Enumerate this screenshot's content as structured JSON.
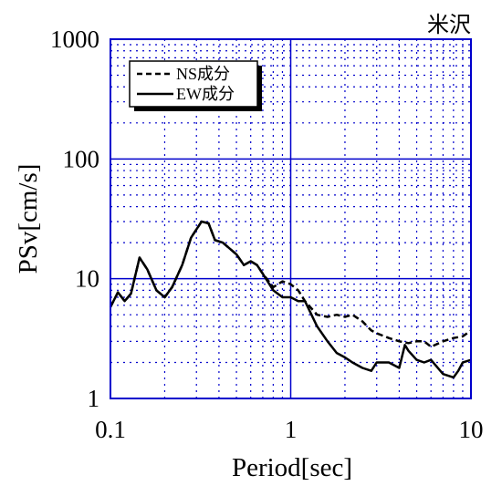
{
  "chart_data": {
    "type": "line",
    "title": "米沢",
    "xlabel": "Period[sec]",
    "ylabel": "PSv[cm/s]",
    "xscale": "log",
    "yscale": "log",
    "xlim": [
      0.1,
      10
    ],
    "ylim": [
      1,
      1000
    ],
    "grid": true,
    "legend_position": "top-left",
    "x_ticks": [
      {
        "value": 0.1,
        "label": "0.1"
      },
      {
        "value": 1,
        "label": "1"
      },
      {
        "value": 10,
        "label": "10"
      }
    ],
    "y_ticks": [
      {
        "value": 1,
        "label": "1"
      },
      {
        "value": 10,
        "label": "10"
      },
      {
        "value": 100,
        "label": "100"
      },
      {
        "value": 1000,
        "label": "1000"
      }
    ],
    "colors": {
      "grid": "#0000cc",
      "axes": "#0000cc",
      "series": "#000000"
    },
    "series": [
      {
        "name": "NS成分",
        "style": "dashed",
        "x": [
          0.1,
          0.11,
          0.12,
          0.13,
          0.145,
          0.16,
          0.18,
          0.2,
          0.22,
          0.25,
          0.28,
          0.32,
          0.35,
          0.38,
          0.42,
          0.5,
          0.55,
          0.6,
          0.65,
          0.7,
          0.8,
          0.9,
          1.0,
          1.1,
          1.2,
          1.4,
          1.6,
          1.8,
          2.0,
          2.2,
          2.5,
          2.8,
          3.0,
          3.5,
          4.0,
          4.5,
          5.0,
          5.5,
          6.0,
          7.0,
          8.0,
          9.0,
          10.0
        ],
        "values": [
          5.8,
          7.7,
          6.5,
          7.5,
          15.0,
          12.0,
          8.0,
          7.0,
          8.5,
          13.0,
          22.0,
          30.0,
          29.0,
          21.0,
          20.0,
          16.0,
          13.0,
          14.0,
          13.0,
          11.0,
          8.5,
          9.5,
          9.0,
          8.0,
          6.5,
          5.0,
          4.8,
          5.0,
          4.8,
          5.0,
          4.4,
          3.7,
          3.5,
          3.2,
          3.0,
          2.9,
          3.0,
          3.0,
          2.7,
          3.0,
          3.2,
          3.3,
          3.7
        ]
      },
      {
        "name": "EW成分",
        "style": "solid",
        "x": [
          0.1,
          0.11,
          0.12,
          0.13,
          0.145,
          0.16,
          0.18,
          0.2,
          0.22,
          0.25,
          0.28,
          0.32,
          0.35,
          0.38,
          0.42,
          0.5,
          0.55,
          0.6,
          0.65,
          0.7,
          0.8,
          0.9,
          1.0,
          1.1,
          1.2,
          1.4,
          1.6,
          1.8,
          2.0,
          2.2,
          2.5,
          2.8,
          3.0,
          3.5,
          4.0,
          4.3,
          4.5,
          5.0,
          5.5,
          6.0,
          7.0,
          8.0,
          8.5,
          9.0,
          10.0
        ],
        "values": [
          5.8,
          7.7,
          6.5,
          7.5,
          15.0,
          12.0,
          8.0,
          7.0,
          8.5,
          13.0,
          22.0,
          30.0,
          29.0,
          21.0,
          20.0,
          16.0,
          13.0,
          14.0,
          13.0,
          11.0,
          8.0,
          7.0,
          7.0,
          6.5,
          6.5,
          4.0,
          3.0,
          2.4,
          2.2,
          2.0,
          1.8,
          1.7,
          2.0,
          2.0,
          1.8,
          2.8,
          2.5,
          2.1,
          2.0,
          2.1,
          1.6,
          1.5,
          1.7,
          2.0,
          2.1
        ]
      }
    ]
  }
}
